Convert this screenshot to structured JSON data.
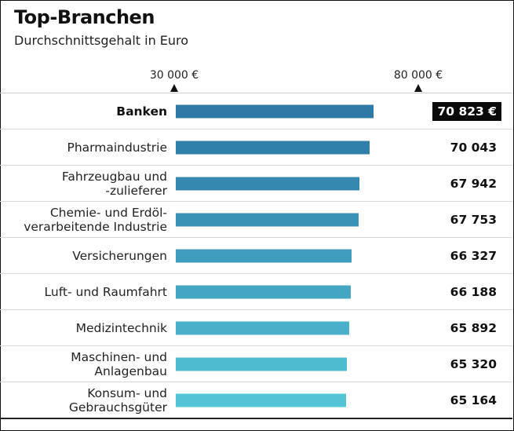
{
  "title": "Top-Branchen",
  "subtitle": "Durchschnittsgehalt in Euro",
  "chart_data": {
    "type": "bar",
    "orientation": "horizontal",
    "title": "Top-Branchen",
    "subtitle": "Durchschnittsgehalt in Euro",
    "axis_markers": [
      {
        "value": 30000,
        "label": "30 000 €"
      },
      {
        "value": 80000,
        "label": "80 000 €"
      }
    ],
    "highlight_index": 0,
    "highlight_color": "#0a0a0a",
    "bar_colors": [
      "#2f79a6",
      "#2f80ab",
      "#3589b1",
      "#3b92b7",
      "#409cbd",
      "#45a6c3",
      "#4ab0c9",
      "#4fbbd0",
      "#52c4d6"
    ],
    "categories": [
      "Banken",
      "Pharmaindustrie",
      "Fahrzeugbau und\n-zulieferer",
      "Chemie- und Erdöl-\nverarbeitende Industrie",
      "Versicherungen",
      "Luft- und Raumfahrt",
      "Medizintechnik",
      "Maschinen- und\nAnlagenbau",
      "Konsum- und\nGebrauchsgüter"
    ],
    "values": [
      70823,
      70043,
      67942,
      67753,
      66327,
      66188,
      65892,
      65320,
      65164
    ],
    "value_labels": [
      "70 823 €",
      "70 043",
      "67 942",
      "67 753",
      "66 327",
      "66 188",
      "65 892",
      "65 320",
      "65 164"
    ]
  }
}
